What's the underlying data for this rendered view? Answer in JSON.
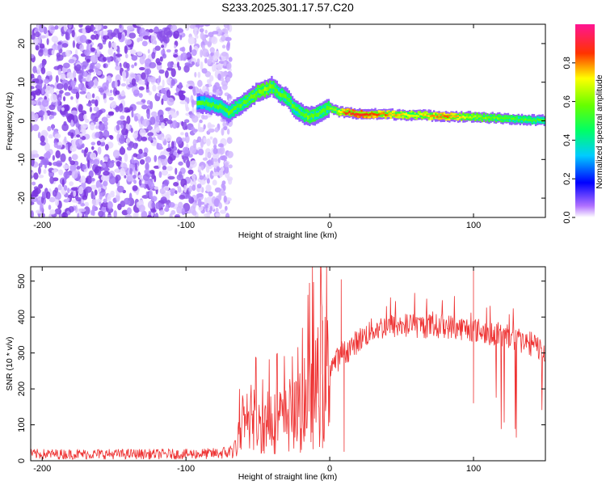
{
  "title": "S233.2025.301.17.57.C20",
  "chart_data": [
    {
      "type": "heatmap",
      "name": "spectrogram",
      "xlabel": "Height of straight line (km)",
      "ylabel": "Frequency (Hz)",
      "xlim": [
        -208,
        150
      ],
      "ylim": [
        -25,
        25
      ],
      "xticks": [
        -200,
        -100,
        0,
        100
      ],
      "yticks": [
        -20,
        -10,
        0,
        10,
        20
      ],
      "colorbar": {
        "label": "Normalized spectral amplitude",
        "range": [
          0,
          1
        ],
        "ticks": [
          0.0,
          0.2,
          0.4,
          0.6,
          0.8
        ],
        "colors": [
          "#ffffff",
          "#8a2be2",
          "#0000ff",
          "#00ffff",
          "#00ff00",
          "#ffff00",
          "#ff0000",
          "#ff1493"
        ]
      },
      "noise_region_x": [
        -208,
        -75
      ],
      "ridge": {
        "x": [
          -92,
          -85,
          -80,
          -75,
          -70,
          -65,
          -60,
          -55,
          -50,
          -45,
          -40,
          -35,
          -30,
          -25,
          -20,
          -15,
          -10,
          -5,
          0,
          5,
          10,
          20,
          40,
          60,
          80,
          100,
          120,
          140,
          150
        ],
        "y": [
          4.5,
          4.5,
          4,
          3.5,
          2,
          3.5,
          4.5,
          6,
          7.5,
          8,
          9,
          7,
          6,
          3.5,
          2,
          1,
          1.5,
          2.5,
          3.5,
          2.5,
          2.2,
          1.8,
          1.7,
          1.5,
          1.2,
          1.0,
          0.6,
          0.2,
          0.1
        ],
        "amplitude": [
          0.3,
          0.35,
          0.4,
          0.35,
          0.4,
          0.45,
          0.5,
          0.55,
          0.55,
          0.6,
          0.55,
          0.45,
          0.5,
          0.45,
          0.45,
          0.55,
          0.5,
          0.45,
          0.55,
          0.6,
          0.8,
          0.85,
          0.75,
          0.65,
          0.8,
          0.6,
          0.55,
          0.45,
          0.4
        ]
      }
    },
    {
      "type": "line",
      "name": "snr",
      "xlabel": "Height of straight line (km)",
      "ylabel": "SNR (10 * v/v)",
      "xlim": [
        -208,
        150
      ],
      "ylim": [
        0,
        540
      ],
      "xticks": [
        -200,
        -100,
        0,
        100
      ],
      "yticks": [
        0,
        100,
        200,
        300,
        400,
        500
      ],
      "color": "#ee3333",
      "envelope": {
        "x": [
          -208,
          -150,
          -100,
          -80,
          -70,
          -65,
          -55,
          -45,
          -35,
          -25,
          -15,
          -5,
          0,
          5,
          10,
          20,
          30,
          40,
          60,
          80,
          100,
          120,
          140,
          150
        ],
        "y": [
          15,
          15,
          15,
          18,
          25,
          60,
          100,
          110,
          120,
          130,
          170,
          240,
          260,
          275,
          295,
          330,
          360,
          370,
          370,
          370,
          360,
          345,
          320,
          300
        ]
      },
      "spikes": [
        {
          "x": 8,
          "y": 505
        },
        {
          "x": 100,
          "y": 540
        },
        {
          "x": 100,
          "y": 160
        },
        {
          "x": -5,
          "y": 35
        },
        {
          "x": 10,
          "y": 25
        }
      ]
    }
  ]
}
